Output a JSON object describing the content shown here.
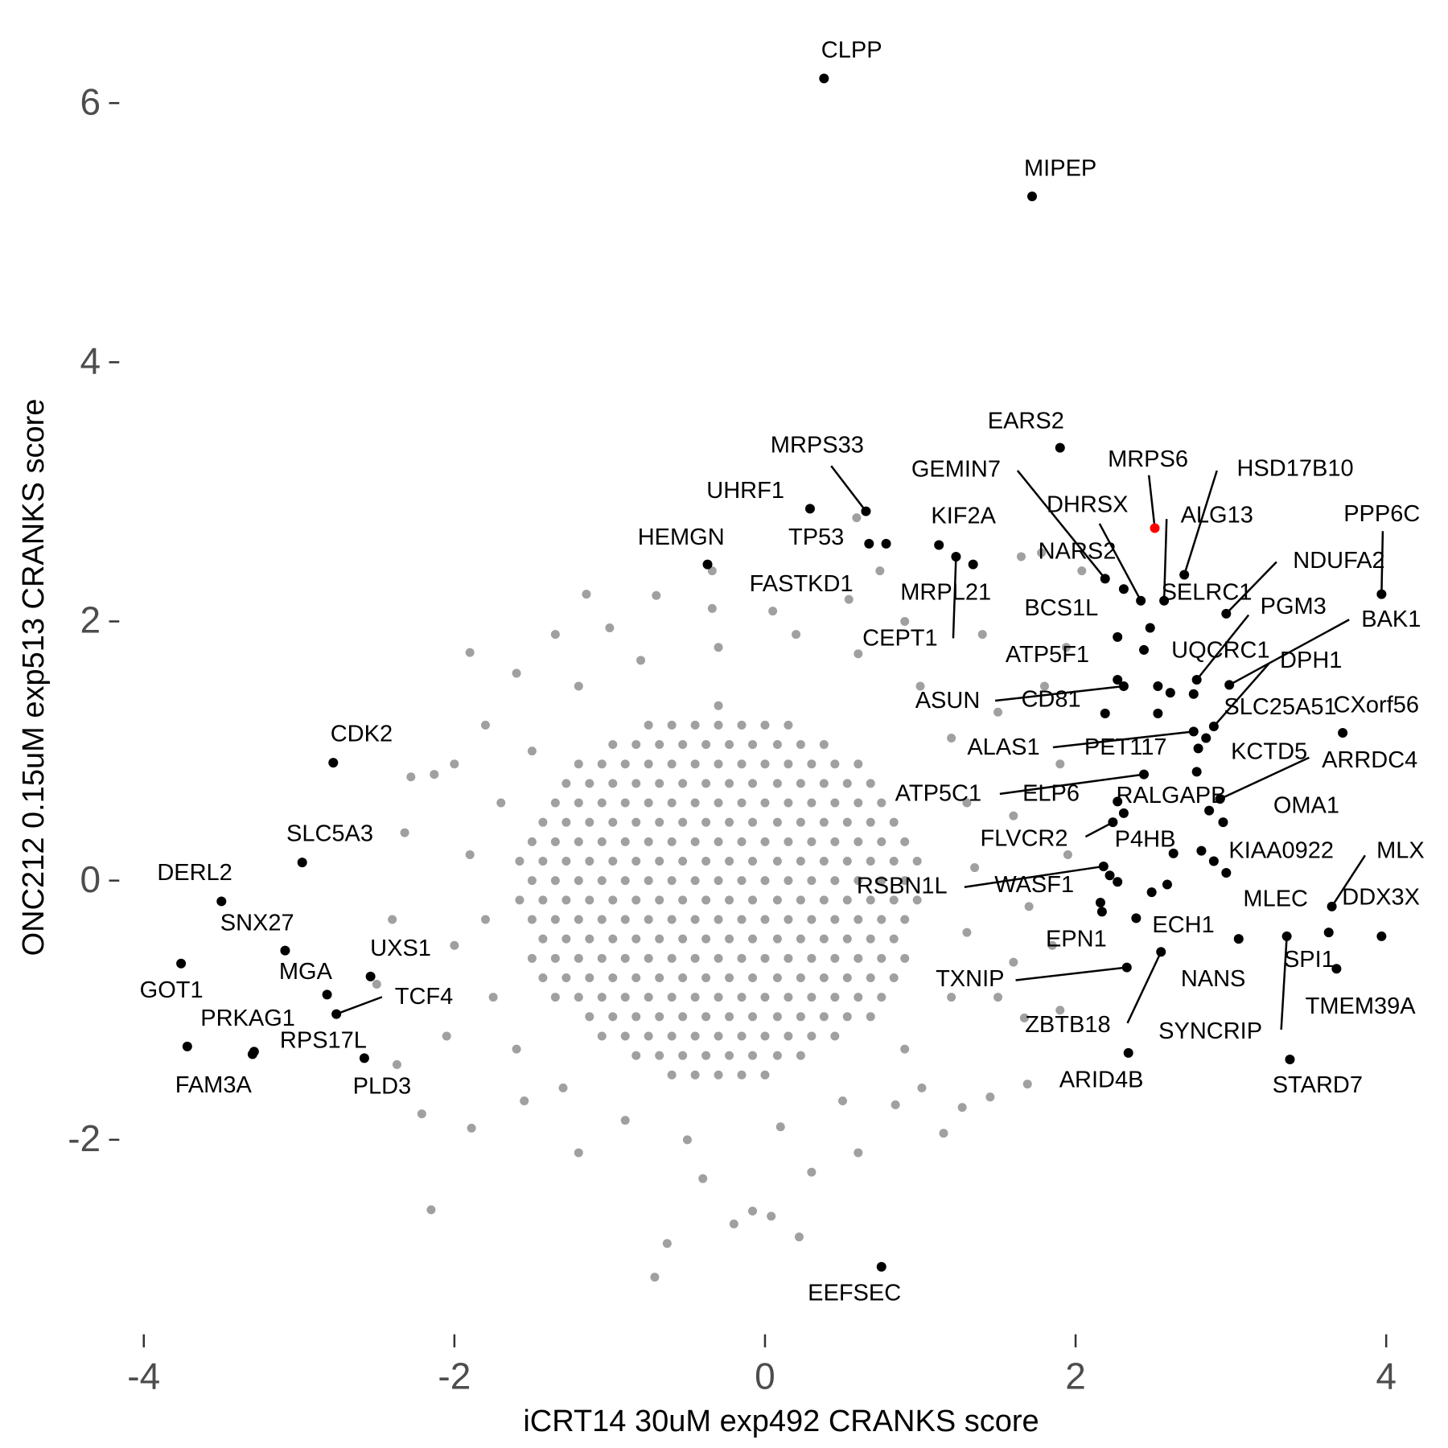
{
  "chart_data": {
    "type": "scatter",
    "xlabel": "iCRT14 30uM exp492 CRANKS score",
    "ylabel": "ONC212 0.15uM exp513 CRANKS score",
    "xlim": [
      -4.2,
      4.2
    ],
    "ylim": [
      -3.3,
      6.4
    ],
    "xticks": [
      -4,
      -2,
      0,
      2,
      4
    ],
    "yticks": [
      -2,
      0,
      2,
      4,
      6
    ],
    "series": [
      {
        "color": "#a0a0a0",
        "x": [
          -0.6,
          -0.45,
          -0.3,
          -0.15,
          0,
          -0.83,
          -0.68,
          -0.53,
          -0.38,
          -0.23,
          -0.08,
          0.08,
          0.23,
          -1.05,
          -0.9,
          -0.75,
          -0.6,
          -0.45,
          -0.3,
          -0.15,
          0,
          0.15,
          0.3,
          0.45,
          -1.13,
          -0.98,
          -0.83,
          -0.68,
          -0.53,
          -0.38,
          -0.23,
          -0.08,
          0.08,
          0.23,
          0.38,
          0.53,
          0.68,
          -1.35,
          -1.2,
          -1.05,
          -0.9,
          -0.75,
          -0.6,
          -0.45,
          -0.3,
          -0.15,
          0,
          0.15,
          0.3,
          0.45,
          0.6,
          0.75,
          -1.43,
          -1.28,
          -1.13,
          -0.98,
          -0.83,
          -0.68,
          -0.53,
          -0.38,
          -0.23,
          -0.08,
          0.08,
          0.23,
          0.38,
          0.53,
          0.68,
          0.83,
          -1.5,
          -1.35,
          -1.2,
          -1.05,
          -0.9,
          -0.75,
          -0.6,
          -0.45,
          -0.3,
          -0.15,
          0,
          0.15,
          0.3,
          0.45,
          0.6,
          0.75,
          0.9,
          -1.43,
          -1.28,
          -1.13,
          -0.98,
          -0.83,
          -0.68,
          -0.53,
          -0.38,
          -0.23,
          -0.08,
          0.08,
          0.23,
          0.38,
          0.53,
          0.68,
          0.83,
          -1.5,
          -1.35,
          -1.2,
          -1.05,
          -0.9,
          -0.75,
          -0.6,
          -0.45,
          -0.3,
          -0.15,
          0,
          0.15,
          0.3,
          0.45,
          0.6,
          0.75,
          0.9,
          -1.58,
          -1.43,
          -1.28,
          -1.13,
          -0.98,
          -0.83,
          -0.68,
          -0.53,
          -0.38,
          -0.23,
          -0.08,
          0.08,
          0.23,
          0.38,
          0.53,
          0.68,
          0.83,
          0.98,
          -1.5,
          -1.35,
          -1.2,
          -1.05,
          -0.9,
          -0.75,
          -0.6,
          -0.45,
          -0.3,
          -0.15,
          0,
          0.15,
          0.3,
          0.45,
          0.6,
          0.75,
          0.9,
          -1.58,
          -1.43,
          -1.28,
          -1.13,
          -0.98,
          -0.83,
          -0.68,
          -0.53,
          -0.38,
          -0.23,
          -0.08,
          0.08,
          0.23,
          0.38,
          0.53,
          0.68,
          0.83,
          0.98,
          -1.5,
          -1.35,
          -1.2,
          -1.05,
          -0.9,
          -0.75,
          -0.6,
          -0.45,
          -0.3,
          -0.15,
          0,
          0.15,
          0.3,
          0.45,
          0.6,
          0.75,
          0.9,
          -1.43,
          -1.28,
          -1.13,
          -0.98,
          -0.83,
          -0.68,
          -0.53,
          -0.38,
          -0.23,
          -0.08,
          0.08,
          0.23,
          0.38,
          0.53,
          0.68,
          0.83,
          -1.35,
          -1.2,
          -1.05,
          -0.9,
          -0.75,
          -0.6,
          -0.45,
          -0.3,
          -0.15,
          0,
          0.15,
          0.3,
          0.45,
          0.6,
          0.75,
          -1.28,
          -1.13,
          -0.98,
          -0.83,
          -0.68,
          -0.53,
          -0.38,
          -0.23,
          -0.08,
          0.08,
          0.23,
          0.38,
          0.53,
          0.68,
          -1.2,
          -1.05,
          -0.9,
          -0.75,
          -0.6,
          -0.45,
          -0.3,
          -0.15,
          0,
          0.15,
          0.3,
          0.45,
          0.6,
          -0.98,
          -0.83,
          -0.68,
          -0.53,
          -0.38,
          -0.23,
          -0.08,
          0.08,
          0.23,
          0.38,
          -0.75,
          -0.6,
          -0.45,
          -0.3,
          -0.15,
          0,
          0.15,
          -0.3,
          -1.15,
          -1.9,
          -2.15,
          -0.71,
          -0.63,
          -0.08,
          0.22,
          0.04,
          -0.2,
          -1.89,
          -2.37,
          -2.21,
          -2.32,
          -2.28,
          -2.13,
          1.69,
          1.45,
          1.27,
          0.84,
          1.01,
          1.65,
          1.78,
          0.59,
          -0.34,
          -0.34,
          0.05,
          0.54,
          0.74,
          2.04,
          1.94,
          1.67,
          1.6,
          -1.8,
          -1.7,
          -1.9,
          -1.8,
          -1.75,
          -1.6,
          -1.3,
          -0.9,
          -0.5,
          0.1,
          0.5,
          0.9,
          1.2,
          1.3,
          1.35,
          1.3,
          1.2,
          1.0,
          0.6,
          0.2,
          -0.3,
          -0.8,
          -1.2,
          -1.5,
          -1.6,
          -2.0,
          -2.0,
          1.5,
          1.6,
          1.7,
          1.5,
          -1.2,
          -0.4,
          0.6,
          -1.35,
          0.9,
          1.4,
          -2.4,
          -2.5,
          1.9,
          1.95,
          1.85,
          1.8,
          -0.7,
          -1.0,
          -1.55,
          -2.05,
          0.3,
          1.15,
          1.9
        ],
        "y": [
          -1.5,
          -1.5,
          -1.5,
          -1.5,
          -1.5,
          -1.35,
          -1.35,
          -1.35,
          -1.35,
          -1.35,
          -1.35,
          -1.35,
          -1.35,
          -1.2,
          -1.2,
          -1.2,
          -1.2,
          -1.2,
          -1.2,
          -1.2,
          -1.2,
          -1.2,
          -1.2,
          -1.2,
          -1.05,
          -1.05,
          -1.05,
          -1.05,
          -1.05,
          -1.05,
          -1.05,
          -1.05,
          -1.05,
          -1.05,
          -1.05,
          -1.05,
          -1.05,
          -0.9,
          -0.9,
          -0.9,
          -0.9,
          -0.9,
          -0.9,
          -0.9,
          -0.9,
          -0.9,
          -0.9,
          -0.9,
          -0.9,
          -0.9,
          -0.9,
          -0.9,
          -0.75,
          -0.75,
          -0.75,
          -0.75,
          -0.75,
          -0.75,
          -0.75,
          -0.75,
          -0.75,
          -0.75,
          -0.75,
          -0.75,
          -0.75,
          -0.75,
          -0.75,
          -0.75,
          -0.6,
          -0.6,
          -0.6,
          -0.6,
          -0.6,
          -0.6,
          -0.6,
          -0.6,
          -0.6,
          -0.6,
          -0.6,
          -0.6,
          -0.6,
          -0.6,
          -0.6,
          -0.6,
          -0.6,
          -0.45,
          -0.45,
          -0.45,
          -0.45,
          -0.45,
          -0.45,
          -0.45,
          -0.45,
          -0.45,
          -0.45,
          -0.45,
          -0.45,
          -0.45,
          -0.45,
          -0.45,
          -0.45,
          -0.3,
          -0.3,
          -0.3,
          -0.3,
          -0.3,
          -0.3,
          -0.3,
          -0.3,
          -0.3,
          -0.3,
          -0.3,
          -0.3,
          -0.3,
          -0.3,
          -0.3,
          -0.3,
          -0.3,
          -0.15,
          -0.15,
          -0.15,
          -0.15,
          -0.15,
          -0.15,
          -0.15,
          -0.15,
          -0.15,
          -0.15,
          -0.15,
          -0.15,
          -0.15,
          -0.15,
          -0.15,
          -0.15,
          -0.15,
          -0.15,
          0,
          0,
          0,
          0,
          0,
          0,
          0,
          0,
          0,
          0,
          0,
          0,
          0,
          0,
          0,
          0,
          0,
          0.15,
          0.15,
          0.15,
          0.15,
          0.15,
          0.15,
          0.15,
          0.15,
          0.15,
          0.15,
          0.15,
          0.15,
          0.15,
          0.15,
          0.15,
          0.15,
          0.15,
          0.15,
          0.3,
          0.3,
          0.3,
          0.3,
          0.3,
          0.3,
          0.3,
          0.3,
          0.3,
          0.3,
          0.3,
          0.3,
          0.3,
          0.3,
          0.3,
          0.3,
          0.3,
          0.45,
          0.45,
          0.45,
          0.45,
          0.45,
          0.45,
          0.45,
          0.45,
          0.45,
          0.45,
          0.45,
          0.45,
          0.45,
          0.45,
          0.45,
          0.45,
          0.6,
          0.6,
          0.6,
          0.6,
          0.6,
          0.6,
          0.6,
          0.6,
          0.6,
          0.6,
          0.6,
          0.6,
          0.6,
          0.6,
          0.6,
          0.75,
          0.75,
          0.75,
          0.75,
          0.75,
          0.75,
          0.75,
          0.75,
          0.75,
          0.75,
          0.75,
          0.75,
          0.75,
          0.75,
          0.9,
          0.9,
          0.9,
          0.9,
          0.9,
          0.9,
          0.9,
          0.9,
          0.9,
          0.9,
          0.9,
          0.9,
          0.9,
          1.05,
          1.05,
          1.05,
          1.05,
          1.05,
          1.05,
          1.05,
          1.05,
          1.05,
          1.05,
          1.2,
          1.2,
          1.2,
          1.2,
          1.2,
          1.2,
          1.2,
          1.35,
          2.21,
          1.76,
          -2.54,
          -3.06,
          -2.8,
          -2.55,
          -2.75,
          -2.59,
          -2.65,
          -1.91,
          -1.42,
          -1.8,
          0.37,
          0.8,
          0.82,
          -1.57,
          -1.67,
          -1.75,
          -1.73,
          -1.6,
          2.5,
          2.53,
          2.8,
          2.39,
          2.1,
          2.08,
          2.17,
          2.39,
          2.39,
          1.8,
          -1.06,
          -0.63,
          1.2,
          0.6,
          0.2,
          -0.3,
          -0.9,
          -1.3,
          -1.6,
          -1.85,
          -2.0,
          -1.9,
          -1.7,
          -1.3,
          -0.9,
          -0.4,
          0.1,
          0.6,
          1.1,
          1.5,
          1.75,
          1.9,
          1.8,
          1.7,
          1.5,
          1.0,
          1.6,
          -0.5,
          0.9,
          1.3,
          0.5,
          -0.2,
          -0.9,
          -2.1,
          -2.3,
          -2.1,
          1.9,
          2.0,
          1.9,
          -0.3,
          -0.8,
          0.9,
          0.2,
          -0.5,
          1.5,
          2.2,
          1.95,
          -1.7,
          -1.2,
          -2.25,
          -1.95,
          -1.0
        ]
      },
      {
        "color": "#000000",
        "x": [
          2.76,
          2.53,
          2.61,
          2.53,
          2.95,
          2.89,
          2.97,
          2.59,
          2.27,
          2.16
        ],
        "y": [
          1.44,
          1.5,
          1.45,
          1.29,
          0.45,
          0.15,
          0.06,
          -0.03,
          -0.01,
          -0.17
        ]
      },
      {
        "color": "#000000",
        "labels": [
          "CLPP",
          "MIPEP",
          "EARS2",
          "MRPS33",
          "UHRF1",
          "TP53",
          "FASTKD1",
          "KIF2A",
          "HEMGN",
          "MRPL21",
          "CEPT1",
          "GEMIN7",
          "NARS2",
          "DHRSX",
          "ALG13",
          "HSD17B10",
          "SELRC1",
          "PPP6C",
          "NDUFA2",
          "BCS1L",
          "PGM3",
          "UQCRC1",
          "BAK1",
          "ATP5F1",
          "DPH1",
          "ASUN",
          "CD81",
          "SLC25A51",
          "CXorf56",
          "ALAS1",
          "PET117",
          "KCTD5",
          "ARRDC4",
          "ATP5C1",
          "ELP6",
          "RALGAPB",
          "OMA1",
          "FLVCR2",
          "P4HB",
          "KIAA0922",
          "MLX",
          "RSBN1L",
          "WASF1",
          "DDX3X",
          "MLEC",
          "ECH1",
          "EPN1",
          "TXNIP",
          "NANS",
          "SPI1",
          "SYNCRIP",
          "TMEM39A",
          "ZBTB18",
          "ARID4B",
          "STARD7",
          "EEFSEC",
          "CDK2",
          "SLC5A3",
          "DERL2",
          "SNX27",
          "GOT1",
          "MGA",
          "UXS1",
          "TCF4",
          "PRKAG1",
          "FAM3A",
          "RPS17L",
          "PLD3"
        ],
        "x": [
          0.38,
          1.72,
          1.9,
          0.65,
          0.29,
          0.67,
          0.78,
          1.12,
          -0.37,
          1.34,
          1.23,
          2.19,
          2.31,
          2.42,
          2.57,
          2.7,
          2.48,
          3.97,
          2.97,
          2.27,
          2.78,
          2.44,
          2.99,
          2.27,
          2.89,
          2.31,
          2.19,
          2.84,
          3.72,
          2.76,
          2.79,
          2.78,
          2.93,
          2.44,
          2.27,
          2.31,
          2.86,
          2.24,
          2.63,
          2.81,
          3.65,
          2.18,
          2.22,
          3.97,
          3.05,
          2.39,
          2.17,
          2.33,
          2.49,
          3.68,
          3.36,
          3.63,
          2.55,
          2.34,
          3.38,
          0.75,
          -2.78,
          -2.98,
          -3.5,
          -3.09,
          -3.76,
          -2.82,
          -2.54,
          -2.76,
          -3.29,
          -3.72,
          -3.3,
          -2.58
        ],
        "y": [
          6.19,
          5.28,
          3.34,
          2.85,
          2.87,
          2.6,
          2.6,
          2.59,
          2.44,
          2.44,
          2.5,
          2.33,
          2.25,
          2.16,
          2.16,
          2.36,
          1.95,
          2.21,
          2.06,
          1.88,
          1.55,
          1.78,
          1.51,
          1.55,
          1.19,
          1.5,
          1.29,
          1.1,
          1.14,
          1.15,
          1.02,
          0.84,
          0.63,
          0.82,
          0.61,
          0.52,
          0.54,
          0.45,
          0.21,
          0.23,
          -0.2,
          0.11,
          0.04,
          -0.43,
          -0.45,
          -0.29,
          -0.24,
          -0.67,
          -0.09,
          -0.68,
          -0.43,
          -0.4,
          -0.55,
          -1.33,
          -1.38,
          -2.98,
          0.91,
          0.14,
          -0.16,
          -0.54,
          -0.64,
          -0.88,
          -0.74,
          -1.03,
          -1.32,
          -1.28,
          -1.34,
          -1.37
        ]
      },
      {
        "color": "#ff0000",
        "labels": [
          "MRPS6"
        ],
        "x": [
          2.51
        ],
        "y": [
          2.72
        ]
      }
    ]
  }
}
